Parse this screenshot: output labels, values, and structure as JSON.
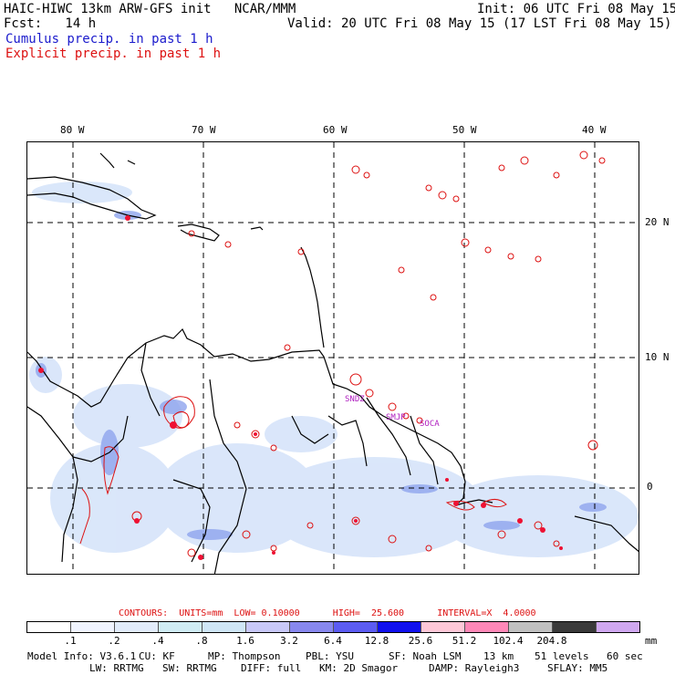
{
  "header": {
    "title": "HAIC-HIWC 13km ARW-GFS init   NCAR/MMM",
    "init": "Init: 06 UTC Fri 08 May 15",
    "fcst": "Fcst:   14 h",
    "valid": "Valid: 20 UTC Fri 08 May 15 (17 LST Fri 08 May 15)",
    "cumulus": "Cumulus precip. in past 1 h",
    "explicit": "Explicit precip. in past 1 h"
  },
  "map": {
    "lon_labels": [
      "80 W",
      "70 W",
      "60 W",
      "50 W",
      "40 W"
    ],
    "lat_labels": [
      "20 N",
      "10 N",
      "0"
    ],
    "stations": [
      "SNDZ",
      "SMJP",
      "SOCA"
    ],
    "colors": {
      "coast": "#000000",
      "grid": "#000000",
      "explicit_contour": "#dd1111",
      "station": "#b020c0"
    }
  },
  "contours": {
    "label": "CONTOURS:  UNITS=mm  LOW= 0.10000      HIGH=  25.600      INTERVAL=X  4.0000"
  },
  "colorbar": {
    "ticks": [
      ".1",
      ".2",
      ".4",
      ".8",
      "1.6",
      "3.2",
      "6.4",
      "12.8",
      "25.6",
      "51.2",
      "102.4",
      "204.8"
    ],
    "units": "mm",
    "colors": [
      "#ffffff",
      "#f0f4ff",
      "#e2ecfb",
      "#d0ecf4",
      "#cfe6f6",
      "#c8c8f8",
      "#8888ee",
      "#5c5cf2",
      "#1010ee",
      "#ffc8d8",
      "#ff88b8",
      "#c0c0c0",
      "#3a3a3a",
      "#d0a8f0"
    ]
  },
  "model_info": {
    "line1": [
      "Model Info: V3.6.1",
      "CU: KF",
      "MP: Thompson",
      "PBL: YSU",
      "SF: Noah LSM",
      "13 km",
      "51 levels",
      "60 sec"
    ],
    "line2": [
      "LW: RRTMG",
      "SW: RRTMG",
      "DIFF: full",
      "KM: 2D Smagor",
      "DAMP: Rayleigh3",
      "SFLAY: MM5"
    ]
  }
}
